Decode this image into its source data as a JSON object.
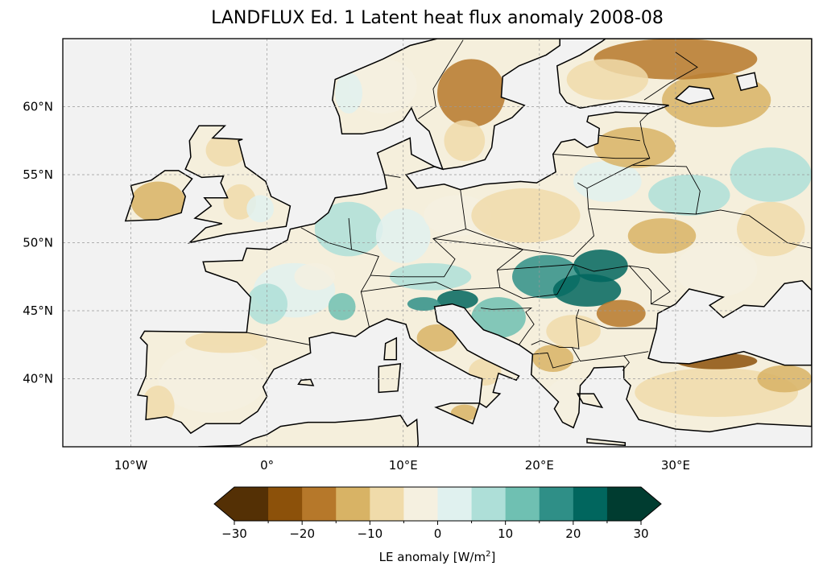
{
  "title": "LANDFLUX Ed. 1 Latent heat flux anomaly 2008-08",
  "map": {
    "extent": {
      "lon": [
        -15,
        40
      ],
      "lat": [
        35,
        65
      ]
    },
    "ocean_color": "#f2f2f2",
    "lon_ticks": [
      {
        "value": -10,
        "label": "10°W"
      },
      {
        "value": 0,
        "label": "0°"
      },
      {
        "value": 10,
        "label": "10°E"
      },
      {
        "value": 20,
        "label": "20°E"
      },
      {
        "value": 30,
        "label": "30°E"
      }
    ],
    "lat_ticks": [
      {
        "value": 40,
        "label": "40°N"
      },
      {
        "value": 45,
        "label": "45°N"
      },
      {
        "value": 50,
        "label": "50°N"
      },
      {
        "value": 55,
        "label": "55°N"
      },
      {
        "value": 60,
        "label": "60°N"
      }
    ],
    "anomaly_patches": [
      {
        "lon": 2,
        "lat": 46.5,
        "rlon": 3,
        "rlat": 2,
        "value": 2
      },
      {
        "lon": 0,
        "lat": 45.5,
        "rlon": 1.5,
        "rlat": 1.5,
        "value": 7
      },
      {
        "lon": 3.5,
        "lat": 47.5,
        "rlon": 1.5,
        "rlat": 1,
        "value": -3
      },
      {
        "lon": 5.5,
        "lat": 45.3,
        "rlon": 1,
        "rlat": 1,
        "value": 12
      },
      {
        "lon": -4,
        "lat": 40,
        "rlon": 4,
        "rlat": 2.5,
        "value": -3
      },
      {
        "lon": -3,
        "lat": 42.7,
        "rlon": 3,
        "rlat": 0.8,
        "value": -8
      },
      {
        "lon": -8,
        "lat": 38,
        "rlon": 1.2,
        "rlat": 1.5,
        "value": -7
      },
      {
        "lon": -8,
        "lat": 53,
        "rlon": 2,
        "rlat": 1.5,
        "value": -13
      },
      {
        "lon": -3,
        "lat": 56.8,
        "rlon": 1.5,
        "rlat": 1.2,
        "value": -10
      },
      {
        "lon": -2,
        "lat": 53,
        "rlon": 1.2,
        "rlat": 1.3,
        "value": -7
      },
      {
        "lon": -0.5,
        "lat": 52.5,
        "rlon": 1,
        "rlat": 1,
        "value": 4
      },
      {
        "lon": 6,
        "lat": 51,
        "rlon": 2.5,
        "rlat": 2,
        "value": 6
      },
      {
        "lon": 10,
        "lat": 50.5,
        "rlon": 2,
        "rlat": 2,
        "value": 3
      },
      {
        "lon": 14,
        "lat": 52,
        "rlon": 2.5,
        "rlat": 1.5,
        "value": -4
      },
      {
        "lon": 19,
        "lat": 52,
        "rlon": 4,
        "rlat": 2,
        "value": -7
      },
      {
        "lon": 12,
        "lat": 47.5,
        "rlon": 3,
        "rlat": 1,
        "value": 9
      },
      {
        "lon": 14,
        "lat": 45.8,
        "rlon": 1.5,
        "rlat": 0.7,
        "value": 22
      },
      {
        "lon": 11.5,
        "lat": 45.5,
        "rlon": 1.2,
        "rlat": 0.5,
        "value": 17
      },
      {
        "lon": 17,
        "lat": 44.5,
        "rlon": 2,
        "rlat": 1.5,
        "value": 13
      },
      {
        "lon": 20.5,
        "lat": 47.5,
        "rlon": 2.5,
        "rlat": 1.6,
        "value": 17
      },
      {
        "lon": 24.5,
        "lat": 48.3,
        "rlon": 2,
        "rlat": 1.2,
        "value": 22
      },
      {
        "lon": 23.5,
        "lat": 46.5,
        "rlon": 2.5,
        "rlat": 1.2,
        "value": 20
      },
      {
        "lon": 26,
        "lat": 44.8,
        "rlon": 1.8,
        "rlat": 1,
        "value": -18
      },
      {
        "lon": 22.5,
        "lat": 43.5,
        "rlon": 2,
        "rlat": 1.2,
        "value": -6
      },
      {
        "lon": 21,
        "lat": 41.5,
        "rlon": 1.5,
        "rlat": 1,
        "value": -11
      },
      {
        "lon": 12.5,
        "lat": 43,
        "rlon": 1.5,
        "rlat": 1,
        "value": -13
      },
      {
        "lon": 16,
        "lat": 40.5,
        "rlon": 1.2,
        "rlat": 1,
        "value": -9
      },
      {
        "lon": 14.5,
        "lat": 37.5,
        "rlon": 1,
        "rlat": 0.6,
        "value": -12
      },
      {
        "lon": 22,
        "lat": 38.5,
        "rlon": 1.5,
        "rlat": 1.5,
        "value": -4
      },
      {
        "lon": 29,
        "lat": 50.5,
        "rlon": 2.5,
        "rlat": 1.3,
        "value": -13
      },
      {
        "lon": 33,
        "lat": 48,
        "rlon": 3,
        "rlat": 2,
        "value": -4
      },
      {
        "lon": 37,
        "lat": 51,
        "rlon": 2.5,
        "rlat": 2,
        "value": -9
      },
      {
        "lon": 31,
        "lat": 53.5,
        "rlon": 3,
        "rlat": 1.5,
        "value": 5
      },
      {
        "lon": 37,
        "lat": 55,
        "rlon": 3,
        "rlat": 2,
        "value": 9
      },
      {
        "lon": 25,
        "lat": 54.5,
        "rlon": 2.5,
        "rlat": 1.5,
        "value": 3
      },
      {
        "lon": 27,
        "lat": 57,
        "rlon": 3,
        "rlat": 1.5,
        "value": -11
      },
      {
        "lon": 33,
        "lat": 60.5,
        "rlon": 4,
        "rlat": 2,
        "value": -14
      },
      {
        "lon": 30,
        "lat": 63.5,
        "rlon": 6,
        "rlat": 1.5,
        "value": -18
      },
      {
        "lon": 25,
        "lat": 62,
        "rlon": 3,
        "rlat": 1.5,
        "value": -8
      },
      {
        "lon": 15,
        "lat": 61,
        "rlon": 2.5,
        "rlat": 2.5,
        "value": -18
      },
      {
        "lon": 14.5,
        "lat": 57.5,
        "rlon": 1.5,
        "rlat": 1.5,
        "value": -9
      },
      {
        "lon": 8.5,
        "lat": 61.5,
        "rlon": 2.5,
        "rlat": 2,
        "value": -4
      },
      {
        "lon": 6,
        "lat": 61,
        "rlon": 1,
        "rlat": 1.5,
        "value": 4
      },
      {
        "lon": 33,
        "lat": 39,
        "rlon": 6,
        "rlat": 1.8,
        "value": -6
      },
      {
        "lon": 33,
        "lat": 41.3,
        "rlon": 3,
        "rlat": 0.6,
        "value": -25
      },
      {
        "lon": 38,
        "lat": 40,
        "rlon": 2,
        "rlat": 1,
        "value": -14
      }
    ]
  },
  "colorbar": {
    "label_prefix": "LE anomaly [W/m",
    "label_sup": "2",
    "label_suffix": "]",
    "min": -30,
    "max": 30,
    "step": 5,
    "colors": [
      "#543005",
      "#8c510a",
      "#b6782a",
      "#d8b365",
      "#f0dbaa",
      "#f5f0e0",
      "#e0f1ef",
      "#aedfd8",
      "#6fc0b2",
      "#2f8f87",
      "#01665e",
      "#003c30"
    ],
    "ticks": [
      {
        "value": -30,
        "label": "−30"
      },
      {
        "value": -20,
        "label": "−20"
      },
      {
        "value": -10,
        "label": "−10"
      },
      {
        "value": 0,
        "label": "0"
      },
      {
        "value": 10,
        "label": "10"
      },
      {
        "value": 20,
        "label": "20"
      },
      {
        "value": 30,
        "label": "30"
      }
    ]
  }
}
